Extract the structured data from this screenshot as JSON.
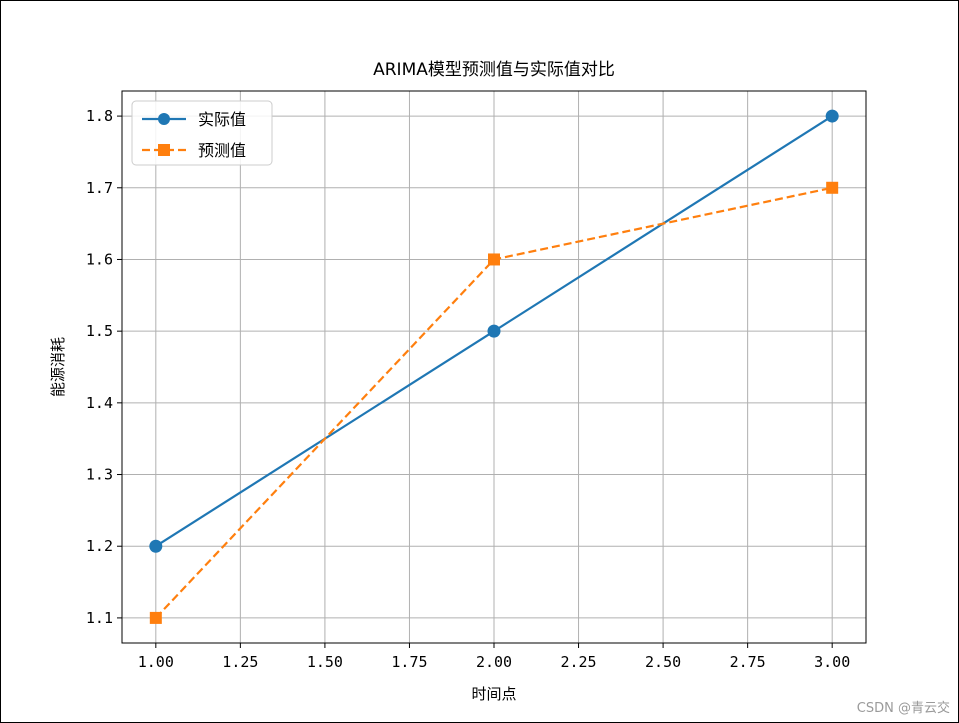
{
  "chart_data": {
    "type": "line",
    "title": "ARIMA模型预测值与实际值对比",
    "xlabel": "时间点",
    "ylabel": "能源消耗",
    "x": [
      1,
      2,
      3
    ],
    "xlim": [
      0.9,
      3.1
    ],
    "ylim": [
      1.065,
      1.835
    ],
    "xticks": [
      1.0,
      1.25,
      1.5,
      1.75,
      2.0,
      2.25,
      2.5,
      2.75,
      3.0
    ],
    "xtick_labels": [
      "1.00",
      "1.25",
      "1.50",
      "1.75",
      "2.00",
      "2.25",
      "2.50",
      "2.75",
      "3.00"
    ],
    "yticks": [
      1.1,
      1.2,
      1.3,
      1.4,
      1.5,
      1.6,
      1.7,
      1.8
    ],
    "ytick_labels": [
      "1.1",
      "1.2",
      "1.3",
      "1.4",
      "1.5",
      "1.6",
      "1.7",
      "1.8"
    ],
    "grid": true,
    "legend_position": "top-left",
    "series": [
      {
        "name": "实际值",
        "values": [
          1.2,
          1.5,
          1.8
        ],
        "color": "#1f77b4",
        "marker": "circle",
        "linestyle": "solid"
      },
      {
        "name": "预测值",
        "values": [
          1.1,
          1.6,
          1.7
        ],
        "color": "#ff7f0e",
        "marker": "square",
        "linestyle": "dashed"
      }
    ]
  },
  "watermark": "CSDN @青云交"
}
